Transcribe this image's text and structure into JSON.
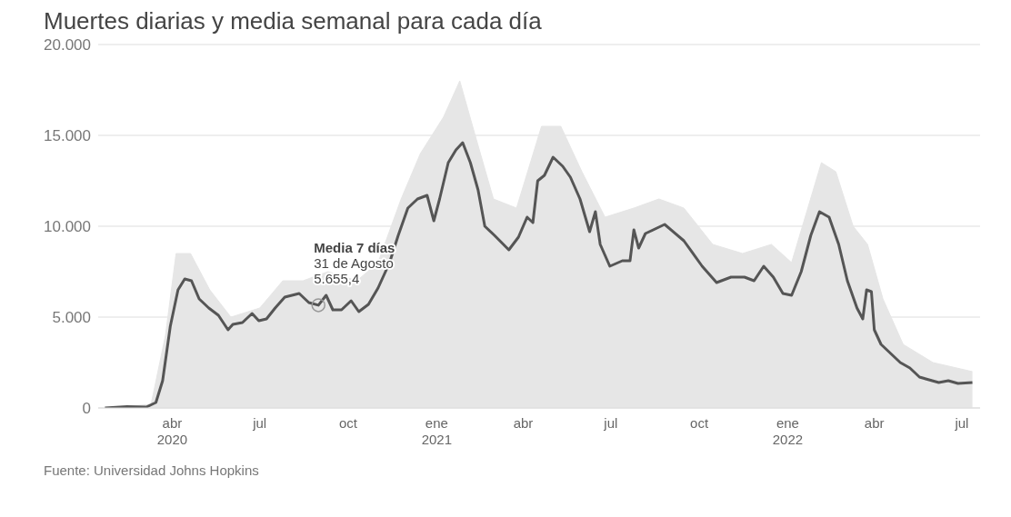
{
  "chart_data": {
    "type": "line",
    "title": "Muertes diarias y media semanal para cada día",
    "series": [
      {
        "type": "area",
        "color": "#e6e6e6",
        "x": [
          "2020-01-22",
          "2020-03-10",
          "2020-03-25",
          "2020-04-05",
          "2020-04-20",
          "2020-05-10",
          "2020-06-01",
          "2020-07-01",
          "2020-07-25",
          "2020-08-15",
          "2020-09-10",
          "2020-10-10",
          "2020-11-01",
          "2020-11-25",
          "2020-12-15",
          "2021-01-08",
          "2021-01-25",
          "2021-02-10",
          "2021-03-01",
          "2021-03-25",
          "2021-04-20",
          "2021-05-10",
          "2021-06-01",
          "2021-06-25",
          "2021-07-25",
          "2021-08-20",
          "2021-09-15",
          "2021-10-15",
          "2021-11-15",
          "2021-12-15",
          "2022-01-05",
          "2022-02-05",
          "2022-02-20",
          "2022-03-10",
          "2022-03-25",
          "2022-04-10",
          "2022-05-01",
          "2022-06-01",
          "2022-07-12"
        ],
        "values": [
          0,
          200,
          4000,
          8500,
          8500,
          6500,
          5000,
          5500,
          7000,
          7000,
          7500,
          7000,
          8000,
          11500,
          14000,
          16000,
          18000,
          15000,
          11500,
          11000,
          15500,
          15500,
          13000,
          10500,
          11000,
          11500,
          11000,
          9000,
          8500,
          9000,
          8000,
          13500,
          13000,
          10000,
          9000,
          6000,
          3500,
          2500,
          2000
        ]
      },
      {
        "name": "Media 7 días",
        "color": "#555555",
        "x": [
          "2020-01-22",
          "2020-02-14",
          "2020-03-05",
          "2020-03-15",
          "2020-03-22",
          "2020-03-30",
          "2020-04-07",
          "2020-04-14",
          "2020-04-21",
          "2020-04-29",
          "2020-05-09",
          "2020-05-19",
          "2020-05-29",
          "2020-06-03",
          "2020-06-13",
          "2020-06-23",
          "2020-06-30",
          "2020-07-08",
          "2020-07-17",
          "2020-07-27",
          "2020-08-11",
          "2020-08-21",
          "2020-08-31",
          "2020-09-08",
          "2020-09-15",
          "2020-09-24",
          "2020-10-04",
          "2020-10-12",
          "2020-10-22",
          "2020-11-01",
          "2020-11-13",
          "2020-11-22",
          "2020-12-02",
          "2020-12-12",
          "2020-12-22",
          "2020-12-29",
          "2021-01-04",
          "2021-01-13",
          "2021-01-21",
          "2021-01-28",
          "2021-02-05",
          "2021-02-13",
          "2021-02-20",
          "2021-03-02",
          "2021-03-17",
          "2021-03-27",
          "2021-04-05",
          "2021-04-11",
          "2021-04-16",
          "2021-04-23",
          "2021-05-02",
          "2021-05-12",
          "2021-05-20",
          "2021-05-30",
          "2021-06-09",
          "2021-06-15",
          "2021-06-20",
          "2021-06-30",
          "2021-07-13",
          "2021-07-21",
          "2021-07-25",
          "2021-07-30",
          "2021-08-06",
          "2021-08-26",
          "2021-09-15",
          "2021-10-04",
          "2021-10-19",
          "2021-11-03",
          "2021-11-17",
          "2021-11-27",
          "2021-12-07",
          "2021-12-17",
          "2021-12-27",
          "2022-01-05",
          "2022-01-15",
          "2022-01-25",
          "2022-02-03",
          "2022-02-13",
          "2022-02-23",
          "2022-03-04",
          "2022-03-14",
          "2022-03-20",
          "2022-03-24",
          "2022-03-29",
          "2022-04-01",
          "2022-04-08",
          "2022-04-18",
          "2022-04-28",
          "2022-05-08",
          "2022-05-18",
          "2022-06-07",
          "2022-06-17",
          "2022-06-27",
          "2022-07-12"
        ],
        "values": [
          0,
          80,
          50,
          300,
          1500,
          4500,
          6500,
          7100,
          7000,
          6000,
          5500,
          5100,
          4300,
          4600,
          4700,
          5200,
          4800,
          4900,
          5500,
          6100,
          6300,
          5800,
          5655,
          6200,
          5400,
          5400,
          5900,
          5300,
          5700,
          6600,
          8000,
          9500,
          11000,
          11500,
          11700,
          10300,
          11500,
          13500,
          14200,
          14600,
          13500,
          12000,
          10000,
          9500,
          8700,
          9400,
          10500,
          10200,
          12500,
          12800,
          13800,
          13300,
          12700,
          11500,
          9700,
          10800,
          9000,
          7800,
          8100,
          8100,
          9800,
          8800,
          9600,
          10100,
          9200,
          7800,
          6900,
          7200,
          7200,
          7000,
          7800,
          7200,
          6300,
          6200,
          7500,
          9500,
          10800,
          10500,
          9000,
          7000,
          5500,
          4900,
          6500,
          6400,
          4300,
          3500,
          3000,
          2500,
          2200,
          1700,
          1400,
          1500,
          1350,
          1400
        ]
      }
    ],
    "xlim": [
      "2020-01-15",
      "2022-07-20"
    ],
    "xticks": [
      {
        "value": "2020-04-01",
        "label": "abr\n2020"
      },
      {
        "value": "2020-07-01",
        "label": "jul"
      },
      {
        "value": "2020-10-01",
        "label": "oct"
      },
      {
        "value": "2021-01-01",
        "label": "ene\n2021"
      },
      {
        "value": "2021-04-01",
        "label": "abr"
      },
      {
        "value": "2021-07-01",
        "label": "jul"
      },
      {
        "value": "2021-10-01",
        "label": "oct"
      },
      {
        "value": "2022-01-01",
        "label": "ene\n2022"
      },
      {
        "value": "2022-04-01",
        "label": "abr"
      },
      {
        "value": "2022-07-01",
        "label": "jul"
      }
    ],
    "ylim": [
      0,
      20000
    ],
    "yticks": [
      {
        "value": 0,
        "label": "0"
      },
      {
        "value": 5000,
        "label": "5.000"
      },
      {
        "value": 10000,
        "label": "10.000"
      },
      {
        "value": 15000,
        "label": "15.000"
      },
      {
        "value": 20000,
        "label": "20.000"
      }
    ],
    "grid": "y",
    "legend": false,
    "marker": "none",
    "line_style": "solid",
    "annotations": [
      {
        "text": "31 de Agosto",
        "x": "2020-08-31",
        "y": 5655.4
      },
      {
        "text": "5.655,4",
        "x": "2020-08-31",
        "y": 5655.4
      },
      "Fuente: Universidad Johns Hopkins"
    ]
  }
}
